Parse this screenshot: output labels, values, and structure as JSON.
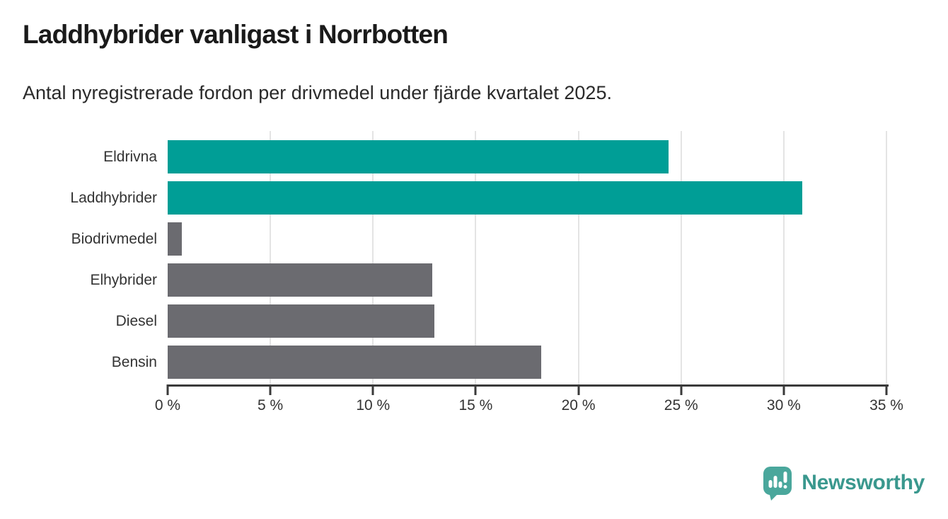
{
  "header": {
    "title": "Laddhybrider vanligast i Norrbotten",
    "subtitle": "Antal nyregistrerade fordon per drivmedel under fjärde kvartalet 2025."
  },
  "chart_data": {
    "type": "bar",
    "orientation": "horizontal",
    "title": "Laddhybrider vanligast i Norrbotten",
    "subtitle": "Antal nyregistrerade fordon per drivmedel under fjärde kvartalet 2025.",
    "categories": [
      "Eldrivna",
      "Laddhybrider",
      "Biodrivmedel",
      "Elhybrider",
      "Diesel",
      "Bensin"
    ],
    "values": [
      24.4,
      30.9,
      0.7,
      12.9,
      13.0,
      18.2
    ],
    "unit": "%",
    "xlim": [
      0,
      35
    ],
    "x_ticks": [
      0,
      5,
      10,
      15,
      20,
      25,
      30,
      35
    ],
    "x_tick_labels": [
      "0 %",
      "5 %",
      "10 %",
      "15 %",
      "20 %",
      "25 %",
      "30 %",
      "35 %"
    ],
    "bar_colors": [
      "#009e96",
      "#009e96",
      "#6b6b70",
      "#6b6b70",
      "#6b6b70",
      "#6b6b70"
    ],
    "highlight_color": "#009e96",
    "default_color": "#6b6b70",
    "grid": "vertical",
    "legend": "none"
  },
  "footer": {
    "brand": "Newsworthy",
    "brand_color": "#3a988e",
    "logo_color": "#4aa79c",
    "logo_glyph": "bar-chart-exclamation-speech-bubble"
  },
  "colors": {
    "background": "#ffffff",
    "axis": "#3a3a3a",
    "gridline": "#e4e4e4",
    "title_text": "#1a1a1a",
    "label_text": "#333333"
  }
}
